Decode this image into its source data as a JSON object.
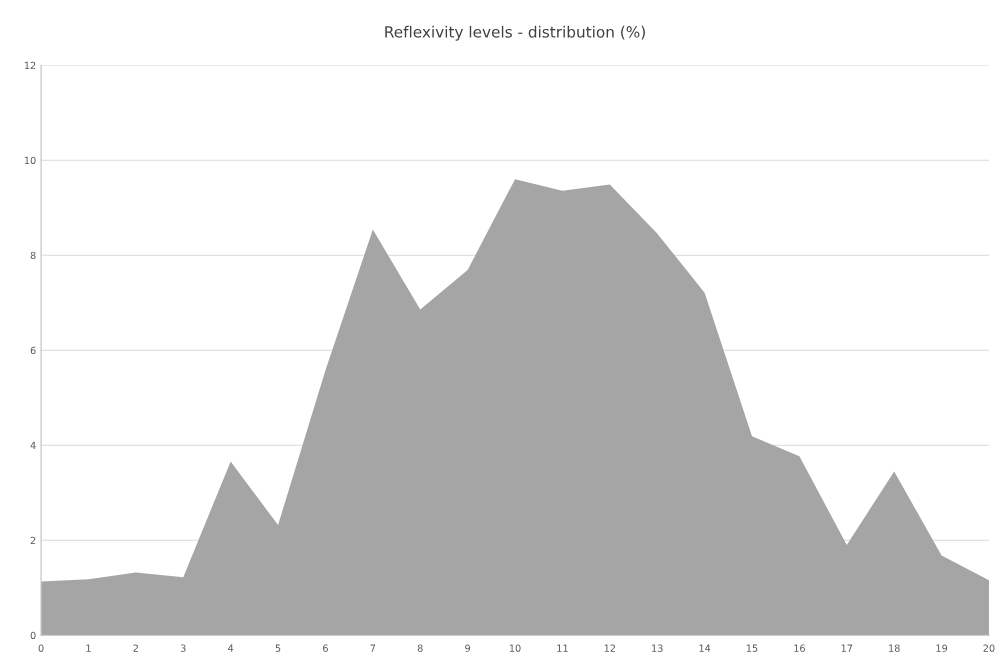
{
  "chart_data": {
    "type": "area",
    "title": "Reflexivity levels - distribution (%)",
    "x": [
      0,
      1,
      2,
      3,
      4,
      5,
      6,
      7,
      8,
      9,
      10,
      11,
      12,
      13,
      14,
      15,
      16,
      17,
      18,
      19,
      20
    ],
    "series": [
      {
        "color": "#a5a5a5",
        "values": [
          1.13,
          1.18,
          1.32,
          1.22,
          3.66,
          2.32,
          5.58,
          8.54,
          6.86,
          7.69,
          9.6,
          9.36,
          9.49,
          8.46,
          7.21,
          4.19,
          3.77,
          1.9,
          3.45,
          1.68,
          1.16
        ]
      }
    ],
    "xlim": [
      0,
      20
    ],
    "xticks": [
      0,
      1,
      2,
      3,
      4,
      5,
      6,
      7,
      8,
      9,
      10,
      11,
      12,
      13,
      14,
      15,
      16,
      17,
      18,
      19,
      20
    ],
    "ylim": [
      0,
      12
    ],
    "yticks": [
      0,
      2,
      4,
      6,
      8,
      10,
      12
    ],
    "grid": "y",
    "legend": false
  }
}
